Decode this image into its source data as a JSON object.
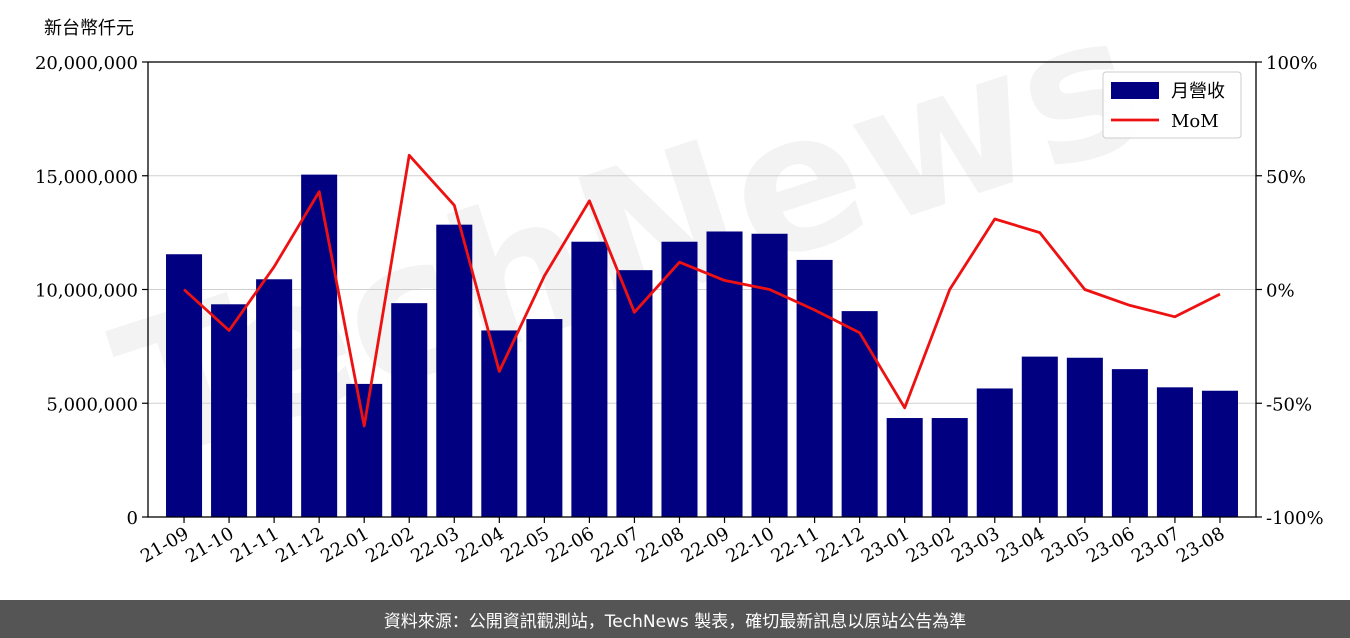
{
  "chart_data": {
    "type": "bar",
    "unit_label": "新台幣仟元",
    "categories": [
      "21-09",
      "21-10",
      "21-11",
      "21-12",
      "22-01",
      "22-02",
      "22-03",
      "22-04",
      "22-05",
      "22-06",
      "22-07",
      "22-08",
      "22-09",
      "22-10",
      "22-11",
      "22-12",
      "23-01",
      "23-02",
      "23-03",
      "23-04",
      "23-05",
      "23-06",
      "23-07",
      "23-08"
    ],
    "series": [
      {
        "name": "月營收",
        "type": "bar",
        "color": "#000080",
        "values": [
          11550000,
          9350000,
          10450000,
          15050000,
          5850000,
          9400000,
          12850000,
          8200000,
          8700000,
          12100000,
          10850000,
          12100000,
          12550000,
          12450000,
          11300000,
          9050000,
          4350000,
          4350000,
          5650000,
          7050000,
          7000000,
          6500000,
          5700000,
          5550000
        ]
      },
      {
        "name": "MoM",
        "type": "line",
        "axis": "right",
        "color": "#ee1111",
        "values": [
          0,
          -18,
          10,
          43,
          -60,
          59,
          37,
          -36,
          6,
          39,
          -10,
          12,
          4,
          0,
          -9,
          -19,
          -52,
          0,
          31,
          25,
          0,
          -7,
          -12,
          -2
        ]
      }
    ],
    "y_left": {
      "min": 0,
      "max": 20000000,
      "ticks": [
        0,
        5000000,
        10000000,
        15000000,
        20000000
      ],
      "tick_labels": [
        "0",
        "5,000,000",
        "10,000,000",
        "15,000,000",
        "20,000,000"
      ]
    },
    "y_right": {
      "min": -100,
      "max": 100,
      "ticks": [
        -100,
        -50,
        0,
        50,
        100
      ],
      "tick_labels": [
        "-100%",
        "-50%",
        "0%",
        "50%",
        "100%"
      ]
    },
    "grid": "horizontal",
    "legend_position": "top-right",
    "watermark": "TechNews"
  },
  "footer": {
    "text": "資料來源：公開資訊觀測站，TechNews 製表，確切最新訊息以原站公告為準"
  }
}
